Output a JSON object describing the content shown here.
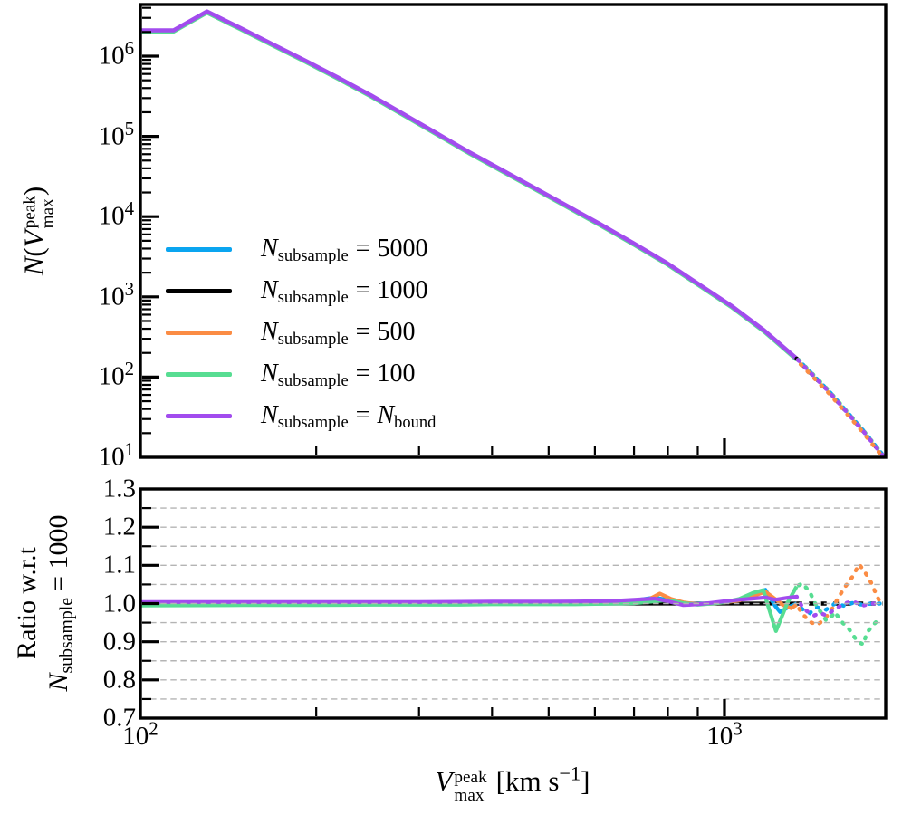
{
  "figure": {
    "background": "#ffffff",
    "spine_color": "#000000",
    "grid_color": "#b4b4b4"
  },
  "labels": {
    "x": {
      "var": "V",
      "sup": "peak",
      "sub": "max",
      "unit_pre": "[km s",
      "unit_exp": "−1",
      "unit_post": "]"
    },
    "y_top": {
      "var": "N",
      "open": "(",
      "inner_var": "V",
      "sup": "peak",
      "sub": "max",
      "close": ")"
    },
    "y_bottom": {
      "line1": "Ratio w.r.t",
      "var": "N",
      "sub": "subsample",
      "eq": "= 1000"
    }
  },
  "top_panel": {
    "yticks": [
      {
        "v": 10,
        "base": "10",
        "exp": "1"
      },
      {
        "v": 100,
        "base": "10",
        "exp": "2"
      },
      {
        "v": 1000,
        "base": "10",
        "exp": "3"
      },
      {
        "v": 10000,
        "base": "10",
        "exp": "4"
      },
      {
        "v": 100000,
        "base": "10",
        "exp": "5"
      },
      {
        "v": 1000000,
        "base": "10",
        "exp": "6"
      }
    ],
    "legend": [
      {
        "var": "N",
        "sub": "subsample",
        "eq": "=",
        "val": "5000",
        "color": "#0aa5f0"
      },
      {
        "var": "N",
        "sub": "subsample",
        "eq": "=",
        "val": "1000",
        "color": "#000000"
      },
      {
        "var": "N",
        "sub": "subsample",
        "eq": "=",
        "val": "500",
        "color": "#fb8c44"
      },
      {
        "var": "N",
        "sub": "subsample",
        "eq": "=",
        "val": "100",
        "color": "#57dd92"
      },
      {
        "var": "N",
        "sub": "subsample",
        "eq": "=",
        "val_var": "N",
        "val_sub": "bound",
        "color": "#a24cee"
      }
    ]
  },
  "bottom_panel": {
    "yticks": [
      {
        "v": 1.3,
        "label": "1.3"
      },
      {
        "v": 1.2,
        "label": "1.2"
      },
      {
        "v": 1.1,
        "label": "1.1"
      },
      {
        "v": 1.0,
        "label": "1.0"
      },
      {
        "v": 0.9,
        "label": "0.9"
      },
      {
        "v": 0.8,
        "label": "0.8"
      },
      {
        "v": 0.7,
        "label": "0.7"
      }
    ],
    "xticks": [
      {
        "v": 100,
        "base": "10",
        "exp": "2"
      },
      {
        "v": 1000,
        "base": "10",
        "exp": "3"
      }
    ]
  },
  "chart_data": [
    {
      "type": "line",
      "panel": "top",
      "title": "",
      "xlabel": "V_max^peak [km s^-1]",
      "ylabel": "N(V_max^peak)",
      "xscale": "log",
      "yscale": "log",
      "xlim": [
        100,
        1888
      ],
      "ylim": [
        10,
        4400000
      ],
      "grid": false,
      "legend_position": "center-left",
      "solid_until_x": 1329,
      "note": "All five subsample curves overlap; counts below apply to every series. Tail beyond solid_until_x is drawn dotted.",
      "x": [
        100,
        114,
        130,
        148,
        168,
        191,
        218,
        248,
        282,
        321,
        365,
        416,
        473,
        538,
        612,
        697,
        793,
        902,
        1026,
        1168,
        1329,
        1512,
        1721,
        1871
      ],
      "counts": [
        2100000,
        2100000,
        3600000,
        2260000,
        1420000,
        890000,
        540000,
        326000,
        190000,
        110000,
        64000,
        38000,
        22800,
        13600,
        8100,
        4700,
        2700,
        1450,
        780,
        384,
        170,
        65,
        22,
        10.3
      ],
      "series": [
        {
          "name": "N_subsample = 5000",
          "color": "#0aa5f0",
          "values_equal_to": "counts"
        },
        {
          "name": "N_subsample = 1000",
          "color": "#000000",
          "values_equal_to": "counts"
        },
        {
          "name": "N_subsample = 500",
          "color": "#fb8c44",
          "values_equal_to": "counts"
        },
        {
          "name": "N_subsample = 100",
          "color": "#57dd92",
          "values_equal_to": "counts"
        },
        {
          "name": "N_subsample = N_bound",
          "color": "#a24cee",
          "values_equal_to": "counts"
        }
      ]
    },
    {
      "type": "line",
      "panel": "bottom",
      "ylabel": "Ratio w.r.t N_subsample = 1000",
      "xscale": "log",
      "yscale": "linear",
      "xlim": [
        100,
        1888
      ],
      "ylim": [
        0.7,
        1.3
      ],
      "grid_y": [
        0.75,
        0.8,
        0.85,
        0.9,
        0.95,
        1.0,
        1.05,
        1.1,
        1.15,
        1.2,
        1.25
      ],
      "grid_style": "dashed, drawn above lines",
      "solid_until_x": 1329,
      "series": [
        {
          "name": "N_subsample = 1000",
          "color": "#000000",
          "points": [
            [
              100,
              1.0
            ],
            [
              1329,
              1.0
            ],
            [
              1865,
              1.0
            ]
          ]
        },
        {
          "name": "N_subsample = 5000",
          "color": "#0aa5f0",
          "points": [
            [
              100,
              1.003
            ],
            [
              150,
              1.003
            ],
            [
              200,
              1.003
            ],
            [
              250,
              1.002
            ],
            [
              300,
              1.002
            ],
            [
              350,
              1.003
            ],
            [
              400,
              1.003
            ],
            [
              450,
              1.003
            ],
            [
              500,
              1.003
            ],
            [
              550,
              1.004
            ],
            [
              600,
              1.004
            ],
            [
              650,
              1.005
            ],
            [
              700,
              1.008
            ],
            [
              760,
              1.016
            ],
            [
              800,
              1.009
            ],
            [
              850,
              1.001
            ],
            [
              900,
              0.999
            ],
            [
              950,
              1.001
            ],
            [
              1000,
              1.004
            ],
            [
              1060,
              1.01
            ],
            [
              1120,
              1.025
            ],
            [
              1175,
              1.036
            ],
            [
              1221,
              0.994
            ],
            [
              1245,
              0.978
            ],
            [
              1285,
              0.99
            ],
            [
              1329,
              1.0
            ],
            [
              1360,
              0.985
            ],
            [
              1400,
              0.975
            ],
            [
              1441,
              0.99
            ],
            [
              1493,
              0.984
            ],
            [
              1546,
              1.0
            ],
            [
              1602,
              0.994
            ],
            [
              1660,
              1.002
            ],
            [
              1720,
              0.997
            ],
            [
              1782,
              1.0
            ],
            [
              1846,
              1.0
            ]
          ]
        },
        {
          "name": "N_subsample = 500",
          "color": "#fb8c44",
          "points": [
            [
              100,
              1.002
            ],
            [
              200,
              1.002
            ],
            [
              300,
              1.001
            ],
            [
              400,
              1.002
            ],
            [
              500,
              1.002
            ],
            [
              600,
              1.003
            ],
            [
              650,
              1.004
            ],
            [
              700,
              1.005
            ],
            [
              740,
              1.01
            ],
            [
              775,
              1.026
            ],
            [
              810,
              1.012
            ],
            [
              850,
              1.003
            ],
            [
              900,
              0.998
            ],
            [
              950,
              1.0
            ],
            [
              1000,
              1.003
            ],
            [
              1060,
              1.008
            ],
            [
              1120,
              1.02
            ],
            [
              1175,
              1.031
            ],
            [
              1221,
              1.012
            ],
            [
              1260,
              0.996
            ],
            [
              1300,
              0.988
            ],
            [
              1329,
              0.997
            ],
            [
              1360,
              0.973
            ],
            [
              1400,
              0.952
            ],
            [
              1441,
              0.944
            ],
            [
              1480,
              0.957
            ],
            [
              1520,
              0.98
            ],
            [
              1560,
              1.01
            ],
            [
              1602,
              1.04
            ],
            [
              1660,
              1.072
            ],
            [
              1700,
              1.103
            ],
            [
              1740,
              1.082
            ],
            [
              1782,
              1.055
            ],
            [
              1812,
              1.03
            ],
            [
              1846,
              1.003
            ]
          ]
        },
        {
          "name": "N_subsample = 100",
          "color": "#57dd92",
          "points": [
            [
              100,
              0.995
            ],
            [
              150,
              0.996
            ],
            [
              200,
              0.996
            ],
            [
              250,
              0.997
            ],
            [
              300,
              0.997
            ],
            [
              350,
              0.997
            ],
            [
              400,
              0.998
            ],
            [
              450,
              0.998
            ],
            [
              500,
              0.998
            ],
            [
              550,
              0.998
            ],
            [
              600,
              0.999
            ],
            [
              650,
              1.0
            ],
            [
              700,
              1.001
            ],
            [
              760,
              1.006
            ],
            [
              800,
              1.009
            ],
            [
              850,
              1.001
            ],
            [
              900,
              0.997
            ],
            [
              950,
              1.0
            ],
            [
              1000,
              1.003
            ],
            [
              1060,
              1.012
            ],
            [
              1120,
              1.028
            ],
            [
              1165,
              1.035
            ],
            [
              1225,
              0.928
            ],
            [
              1280,
              1.0
            ],
            [
              1329,
              1.045
            ],
            [
              1360,
              1.053
            ],
            [
              1400,
              1.03
            ],
            [
              1441,
              0.99
            ],
            [
              1470,
              0.973
            ],
            [
              1493,
              0.956
            ],
            [
              1520,
              0.963
            ],
            [
              1546,
              0.978
            ],
            [
              1580,
              0.955
            ],
            [
              1631,
              0.935
            ],
            [
              1690,
              0.9
            ],
            [
              1730,
              0.893
            ],
            [
              1751,
              0.923
            ],
            [
              1800,
              0.945
            ],
            [
              1846,
              0.962
            ]
          ]
        },
        {
          "name": "N_subsample = N_bound",
          "color": "#a24cee",
          "points": [
            [
              100,
              1.004
            ],
            [
              200,
              1.004
            ],
            [
              300,
              1.004
            ],
            [
              400,
              1.005
            ],
            [
              500,
              1.005
            ],
            [
              600,
              1.006
            ],
            [
              650,
              1.007
            ],
            [
              700,
              1.01
            ],
            [
              760,
              1.013
            ],
            [
              800,
              1.006
            ],
            [
              850,
              0.996
            ],
            [
              900,
              0.998
            ],
            [
              950,
              1.002
            ],
            [
              1000,
              1.006
            ],
            [
              1060,
              1.01
            ],
            [
              1120,
              1.013
            ],
            [
              1175,
              1.016
            ],
            [
              1221,
              1.01
            ],
            [
              1280,
              1.015
            ],
            [
              1329,
              1.018
            ],
            [
              1360,
              0.99
            ],
            [
              1400,
              0.974
            ],
            [
              1425,
              0.969
            ],
            [
              1460,
              0.975
            ],
            [
              1493,
              0.969
            ],
            [
              1546,
              0.985
            ],
            [
              1602,
              1.0
            ],
            [
              1660,
              1.006
            ],
            [
              1720,
              0.994
            ],
            [
              1782,
              1.0
            ],
            [
              1846,
              1.0
            ]
          ]
        }
      ]
    }
  ]
}
